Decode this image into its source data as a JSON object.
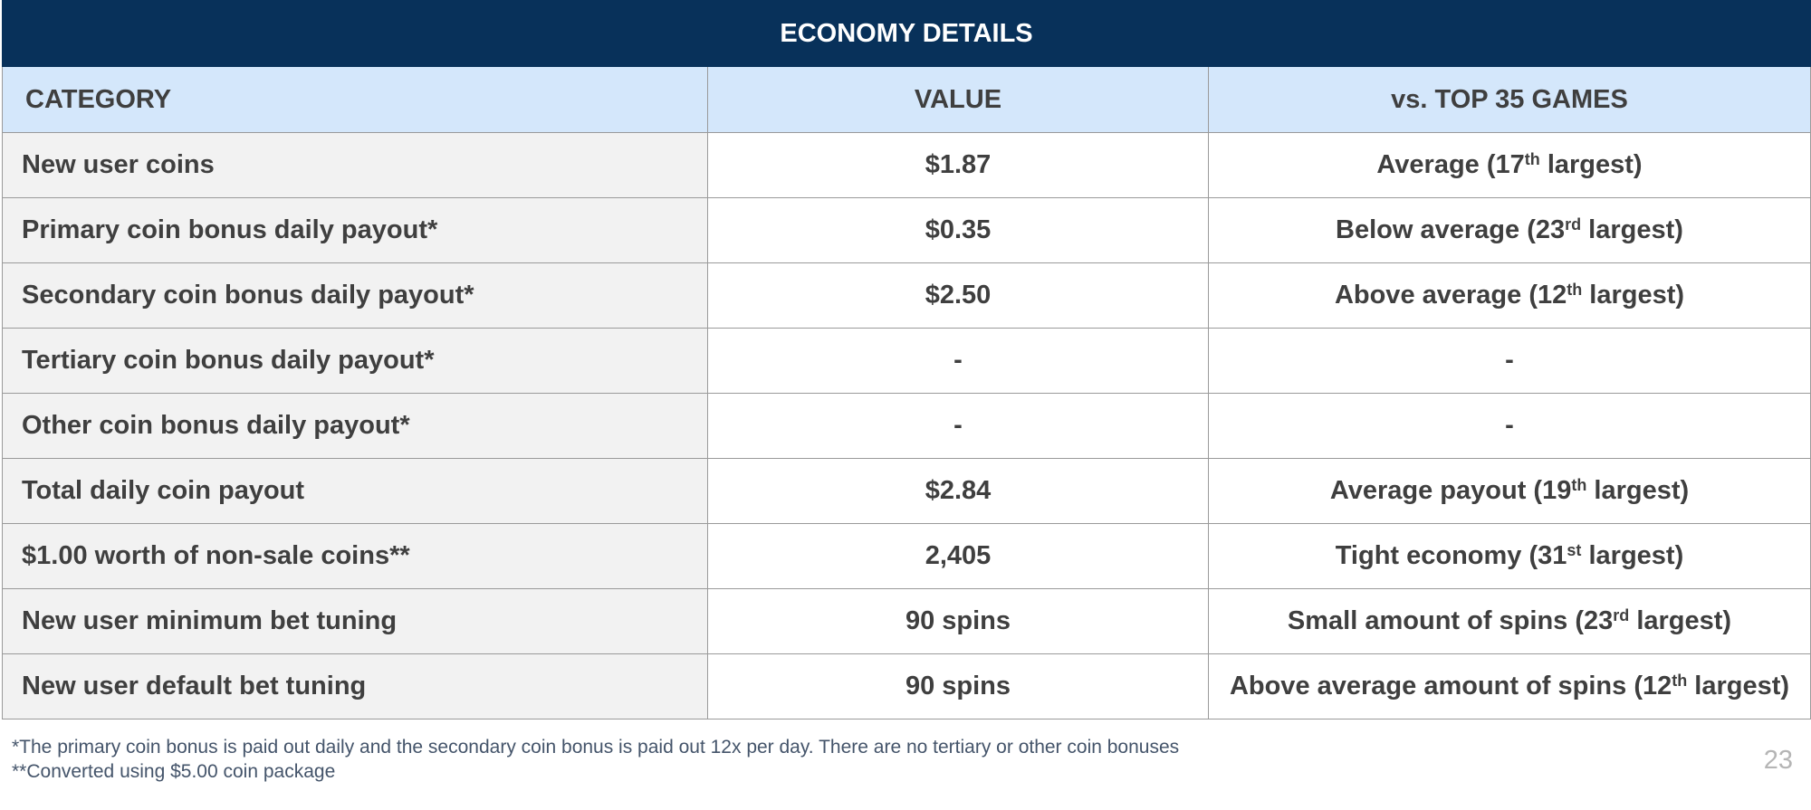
{
  "table": {
    "title": "ECONOMY DETAILS",
    "headers": {
      "category": "CATEGORY",
      "value": "VALUE",
      "comparison": "vs. TOP 35 GAMES"
    },
    "rows": [
      {
        "category": "New user coins",
        "value": "$1.87",
        "comparison": {
          "before": "Average (17",
          "sup": "th",
          "after": " largest)"
        }
      },
      {
        "category": "Primary coin bonus daily payout*",
        "value": "$0.35",
        "comparison": {
          "before": "Below average (23",
          "sup": "rd",
          "after": " largest)"
        }
      },
      {
        "category": "Secondary coin bonus daily payout*",
        "value": "$2.50",
        "comparison": {
          "before": "Above average (12",
          "sup": "th",
          "after": " largest)"
        }
      },
      {
        "category": "Tertiary coin bonus daily payout*",
        "value": "-",
        "comparison": {
          "before": "-",
          "sup": "",
          "after": ""
        }
      },
      {
        "category": "Other coin bonus daily payout*",
        "value": "-",
        "comparison": {
          "before": "-",
          "sup": "",
          "after": ""
        }
      },
      {
        "category": "Total daily coin payout",
        "value": "$2.84",
        "comparison": {
          "before": "Average payout (19",
          "sup": "th",
          "after": " largest)"
        }
      },
      {
        "category": "$1.00 worth of non-sale coins**",
        "value": "2,405",
        "comparison": {
          "before": "Tight economy (31",
          "sup": "st",
          "after": " largest)"
        }
      },
      {
        "category": "New user minimum bet tuning",
        "value": "90 spins",
        "comparison": {
          "before": "Small amount of spins (23",
          "sup": "rd",
          "after": " largest)"
        }
      },
      {
        "category": "New user default bet tuning",
        "value": "90 spins",
        "comparison": {
          "before": "Above average amount of spins (12",
          "sup": "th",
          "after": " largest)"
        }
      }
    ]
  },
  "footnotes": {
    "note1": "*The primary coin bonus is paid out daily and the secondary coin bonus is paid out 12x per day. There are no tertiary or other coin bonuses",
    "note2": "**Converted using $5.00 coin package"
  },
  "page_number": "23",
  "colors": {
    "title_background": "#08315a",
    "header_background": "#d4e7fb",
    "category_background": "#f2f2f2",
    "footnote_text": "#44546a"
  }
}
